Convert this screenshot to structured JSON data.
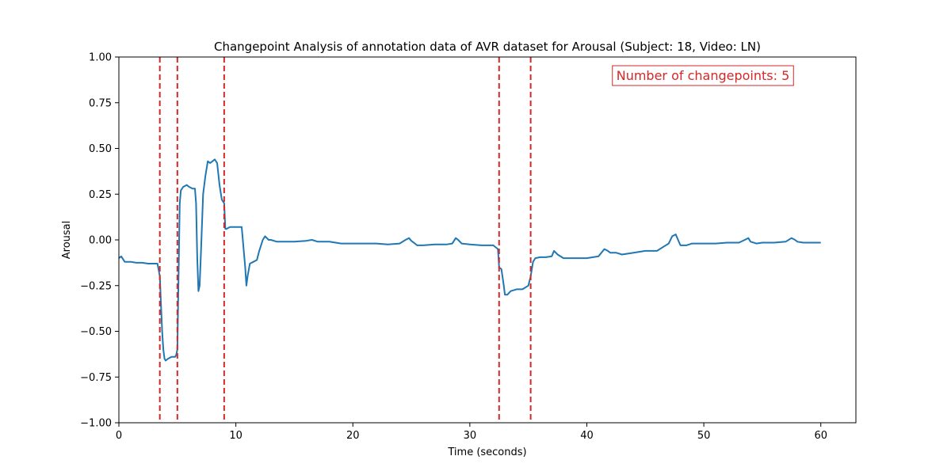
{
  "chart_data": {
    "type": "line",
    "title": "Changepoint Analysis of annotation data of AVR dataset for Arousal (Subject: 18, Video: LN)",
    "xlabel": "Time (seconds)",
    "ylabel": "Arousal",
    "xlim": [
      0,
      63
    ],
    "ylim": [
      -1.0,
      1.0
    ],
    "x_ticks": [
      0,
      10,
      20,
      30,
      40,
      50,
      60
    ],
    "x_tick_labels": [
      "0",
      "10",
      "20",
      "30",
      "40",
      "50",
      "60"
    ],
    "y_ticks": [
      -1.0,
      -0.75,
      -0.5,
      -0.25,
      0.0,
      0.25,
      0.5,
      0.75,
      1.0
    ],
    "y_tick_labels": [
      "−1.00",
      "−0.75",
      "−0.50",
      "−0.25",
      "0.00",
      "0.25",
      "0.50",
      "0.75",
      "1.00"
    ],
    "grid": false,
    "line_color": "#1f77b4",
    "changepoint_color": "#d62728",
    "annotation": "Number of changepoints: 5",
    "changepoints": [
      3.5,
      5.0,
      9.0,
      32.5,
      35.2
    ],
    "series": [
      {
        "x": [
          0,
          0.2,
          0.5,
          1.0,
          1.5,
          2.0,
          2.5,
          3.0,
          3.3,
          3.5,
          3.6,
          3.7,
          3.8,
          3.9,
          4.0,
          4.2,
          4.5,
          4.8,
          4.9,
          5.0,
          5.1,
          5.2,
          5.3,
          5.5,
          5.8,
          6.0,
          6.3,
          6.5,
          6.6,
          6.7,
          6.8,
          6.9,
          7.0,
          7.2,
          7.4,
          7.6,
          7.8,
          8.0,
          8.2,
          8.4,
          8.6,
          8.8,
          9.0,
          9.1,
          9.2,
          9.5,
          10.0,
          10.5,
          10.8,
          10.9,
          11.0,
          11.2,
          11.5,
          11.8,
          12.0,
          12.3,
          12.5,
          12.8,
          13.0,
          13.5,
          14.0,
          14.5,
          15.0,
          16.0,
          16.5,
          17.0,
          18.0,
          19.0,
          20.0,
          21.0,
          22.0,
          23.0,
          24.0,
          24.5,
          24.8,
          25.0,
          25.3,
          25.5,
          26.0,
          27.0,
          28.0,
          28.5,
          28.8,
          29.0,
          29.3,
          30.0,
          31.0,
          32.0,
          32.4,
          32.5,
          32.7,
          32.9,
          33.0,
          33.2,
          33.5,
          34.0,
          34.5,
          35.0,
          35.2,
          35.4,
          35.6,
          36.0,
          36.5,
          37.0,
          37.2,
          37.5,
          38.0,
          39.0,
          40.0,
          41.0,
          41.5,
          41.8,
          42.0,
          42.5,
          43.0,
          44.0,
          45.0,
          46.0,
          46.5,
          47.0,
          47.3,
          47.6,
          47.8,
          48.0,
          48.5,
          49.0,
          50.0,
          51.0,
          52.0,
          53.0,
          53.5,
          53.8,
          54.0,
          54.5,
          55.0,
          56.0,
          57.0,
          57.5,
          57.8,
          58.0,
          58.5,
          59.0,
          60.0
        ],
        "y": [
          -0.1,
          -0.09,
          -0.12,
          -0.12,
          -0.125,
          -0.125,
          -0.13,
          -0.13,
          -0.13,
          -0.2,
          -0.35,
          -0.5,
          -0.6,
          -0.65,
          -0.66,
          -0.65,
          -0.64,
          -0.64,
          -0.63,
          -0.6,
          -0.2,
          0.2,
          0.27,
          0.29,
          0.3,
          0.29,
          0.28,
          0.28,
          0.2,
          -0.1,
          -0.28,
          -0.25,
          -0.1,
          0.25,
          0.35,
          0.43,
          0.42,
          0.43,
          0.44,
          0.42,
          0.3,
          0.22,
          0.2,
          0.06,
          0.06,
          0.07,
          0.07,
          0.07,
          -0.15,
          -0.25,
          -0.2,
          -0.13,
          -0.12,
          -0.11,
          -0.06,
          0.0,
          0.02,
          0.0,
          0.0,
          -0.01,
          -0.01,
          -0.01,
          -0.01,
          -0.005,
          0.0,
          -0.01,
          -0.01,
          -0.02,
          -0.02,
          -0.02,
          -0.02,
          -0.025,
          -0.02,
          0.0,
          0.01,
          -0.005,
          -0.02,
          -0.03,
          -0.03,
          -0.025,
          -0.025,
          -0.02,
          0.01,
          0.0,
          -0.02,
          -0.025,
          -0.03,
          -0.03,
          -0.05,
          -0.15,
          -0.16,
          -0.25,
          -0.3,
          -0.3,
          -0.28,
          -0.27,
          -0.27,
          -0.25,
          -0.2,
          -0.12,
          -0.1,
          -0.095,
          -0.095,
          -0.09,
          -0.06,
          -0.08,
          -0.1,
          -0.1,
          -0.1,
          -0.09,
          -0.05,
          -0.06,
          -0.07,
          -0.07,
          -0.08,
          -0.07,
          -0.06,
          -0.06,
          -0.04,
          -0.02,
          0.02,
          0.03,
          0.0,
          -0.03,
          -0.03,
          -0.02,
          -0.02,
          -0.02,
          -0.015,
          -0.015,
          0.0,
          0.01,
          -0.01,
          -0.02,
          -0.015,
          -0.015,
          -0.01,
          0.01,
          0.0,
          -0.01,
          -0.015,
          -0.015,
          -0.015
        ]
      }
    ]
  }
}
